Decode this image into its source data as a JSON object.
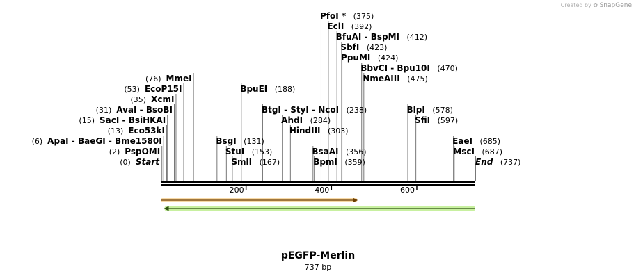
{
  "credit": {
    "prefix": "Created by",
    "brand": "SnapGene"
  },
  "plasmid": {
    "name": "pEGFP-Merlin",
    "length_label": "737 bp",
    "length": 737
  },
  "colors": {
    "backbone": "#000000",
    "feature_orange": "#f0a030",
    "feature_orange_fill": "#f7d9a6",
    "feature_green": "#a8e070",
    "feature_green_fill": "#c8f0a0"
  },
  "chart_data": {
    "type": "linear-map",
    "scale_ticks": [
      {
        "pos": 200,
        "label": "200"
      },
      {
        "pos": 400,
        "label": "400"
      },
      {
        "pos": 600,
        "label": "600"
      }
    ],
    "features": [
      {
        "start": 1,
        "end": 460,
        "direction": "forward",
        "color": "#f0a030"
      },
      {
        "start": 9,
        "end": 737,
        "direction": "reverse",
        "color": "#a8e070"
      }
    ],
    "sites": [
      {
        "id": "start",
        "names": [
          "Start"
        ],
        "pos": 0,
        "pos_label": "(0)",
        "italic": true,
        "side": "left",
        "row": 0
      },
      {
        "id": "pspomi",
        "names": [
          "PspOMI"
        ],
        "pos": 2,
        "pos_label": "(2)",
        "side": "left",
        "row": 1
      },
      {
        "id": "apai",
        "names": [
          "ApaI",
          "BaeGI",
          "Bme1580I"
        ],
        "pos": 6,
        "pos_label": "(6)",
        "side": "left",
        "row": 2
      },
      {
        "id": "eco53ki",
        "names": [
          "Eco53kI"
        ],
        "pos": 13,
        "pos_label": "(13)",
        "side": "left",
        "row": 3
      },
      {
        "id": "saci",
        "names": [
          "SacI",
          "BsiHKAI"
        ],
        "pos": 15,
        "pos_label": "(15)",
        "side": "left",
        "row": 4
      },
      {
        "id": "avai",
        "names": [
          "AvaI",
          "BsoBI"
        ],
        "pos": 31,
        "pos_label": "(31)",
        "side": "left",
        "row": 5
      },
      {
        "id": "xcmi",
        "names": [
          "XcmI"
        ],
        "pos": 35,
        "pos_label": "(35)",
        "side": "left",
        "row": 6
      },
      {
        "id": "ecop15i",
        "names": [
          "EcoP15I"
        ],
        "pos": 53,
        "pos_label": "(53)",
        "side": "left",
        "row": 7
      },
      {
        "id": "mmei",
        "names": [
          "MmeI"
        ],
        "pos": 76,
        "pos_label": "(76)",
        "side": "left",
        "row": 8
      },
      {
        "id": "bsgi",
        "names": [
          "BsgI"
        ],
        "pos": 131,
        "pos_label": "(131)",
        "side": "right",
        "row": 2
      },
      {
        "id": "stui",
        "names": [
          "StuI"
        ],
        "pos": 153,
        "pos_label": "(153)",
        "side": "right",
        "row": 1
      },
      {
        "id": "smli",
        "names": [
          "SmlI"
        ],
        "pos": 167,
        "pos_label": "(167)",
        "side": "right",
        "row": 0
      },
      {
        "id": "bpuei",
        "names": [
          "BpuEI"
        ],
        "pos": 188,
        "pos_label": "(188)",
        "side": "right",
        "row": 7
      },
      {
        "id": "btgi",
        "names": [
          "BtgI",
          "StyI",
          "NcoI"
        ],
        "pos": 238,
        "pos_label": "(238)",
        "side": "right",
        "row": 5
      },
      {
        "id": "ahdi",
        "names": [
          "AhdI"
        ],
        "pos": 284,
        "pos_label": "(284)",
        "side": "right",
        "row": 4
      },
      {
        "id": "hindiii",
        "names": [
          "HindIII"
        ],
        "pos": 303,
        "pos_label": "(303)",
        "side": "right",
        "row": 3
      },
      {
        "id": "bsaai",
        "names": [
          "BsaAI"
        ],
        "pos": 356,
        "pos_label": "(356)",
        "side": "right",
        "row": 1
      },
      {
        "id": "bpmi",
        "names": [
          "BpmI"
        ],
        "pos": 359,
        "pos_label": "(359)",
        "side": "right",
        "row": 0
      },
      {
        "id": "pfoi",
        "names": [
          "PfoI *"
        ],
        "pos": 375,
        "pos_label": "(375)",
        "side": "right",
        "row": 14
      },
      {
        "id": "ecii",
        "names": [
          "EciI"
        ],
        "pos": 392,
        "pos_label": "(392)",
        "side": "right",
        "row": 13
      },
      {
        "id": "bfuai",
        "names": [
          "BfuAI",
          "BspMI"
        ],
        "pos": 412,
        "pos_label": "(412)",
        "side": "right",
        "row": 12
      },
      {
        "id": "sbfi",
        "names": [
          "SbfI"
        ],
        "pos": 423,
        "pos_label": "(423)",
        "side": "right",
        "row": 11
      },
      {
        "id": "ppumi",
        "names": [
          "PpuMI"
        ],
        "pos": 424,
        "pos_label": "(424)",
        "side": "right",
        "row": 10
      },
      {
        "id": "bbvci",
        "names": [
          "BbvCI",
          "Bpu10I"
        ],
        "pos": 470,
        "pos_label": "(470)",
        "side": "right",
        "row": 9
      },
      {
        "id": "nmeaiii",
        "names": [
          "NmeAIII"
        ],
        "pos": 475,
        "pos_label": "(475)",
        "side": "right",
        "row": 8
      },
      {
        "id": "blpi",
        "names": [
          "BlpI"
        ],
        "pos": 578,
        "pos_label": "(578)",
        "side": "right",
        "row": 5
      },
      {
        "id": "sfii",
        "names": [
          "SfiI"
        ],
        "pos": 597,
        "pos_label": "(597)",
        "side": "right",
        "row": 4
      },
      {
        "id": "eaei",
        "names": [
          "EaeI"
        ],
        "pos": 685,
        "pos_label": "(685)",
        "side": "right",
        "row": 2
      },
      {
        "id": "msci",
        "names": [
          "MscI"
        ],
        "pos": 687,
        "pos_label": "(687)",
        "side": "right",
        "row": 1
      },
      {
        "id": "end",
        "names": [
          "End"
        ],
        "pos": 737,
        "pos_label": "(737)",
        "italic": true,
        "side": "right",
        "row": 0
      }
    ]
  }
}
